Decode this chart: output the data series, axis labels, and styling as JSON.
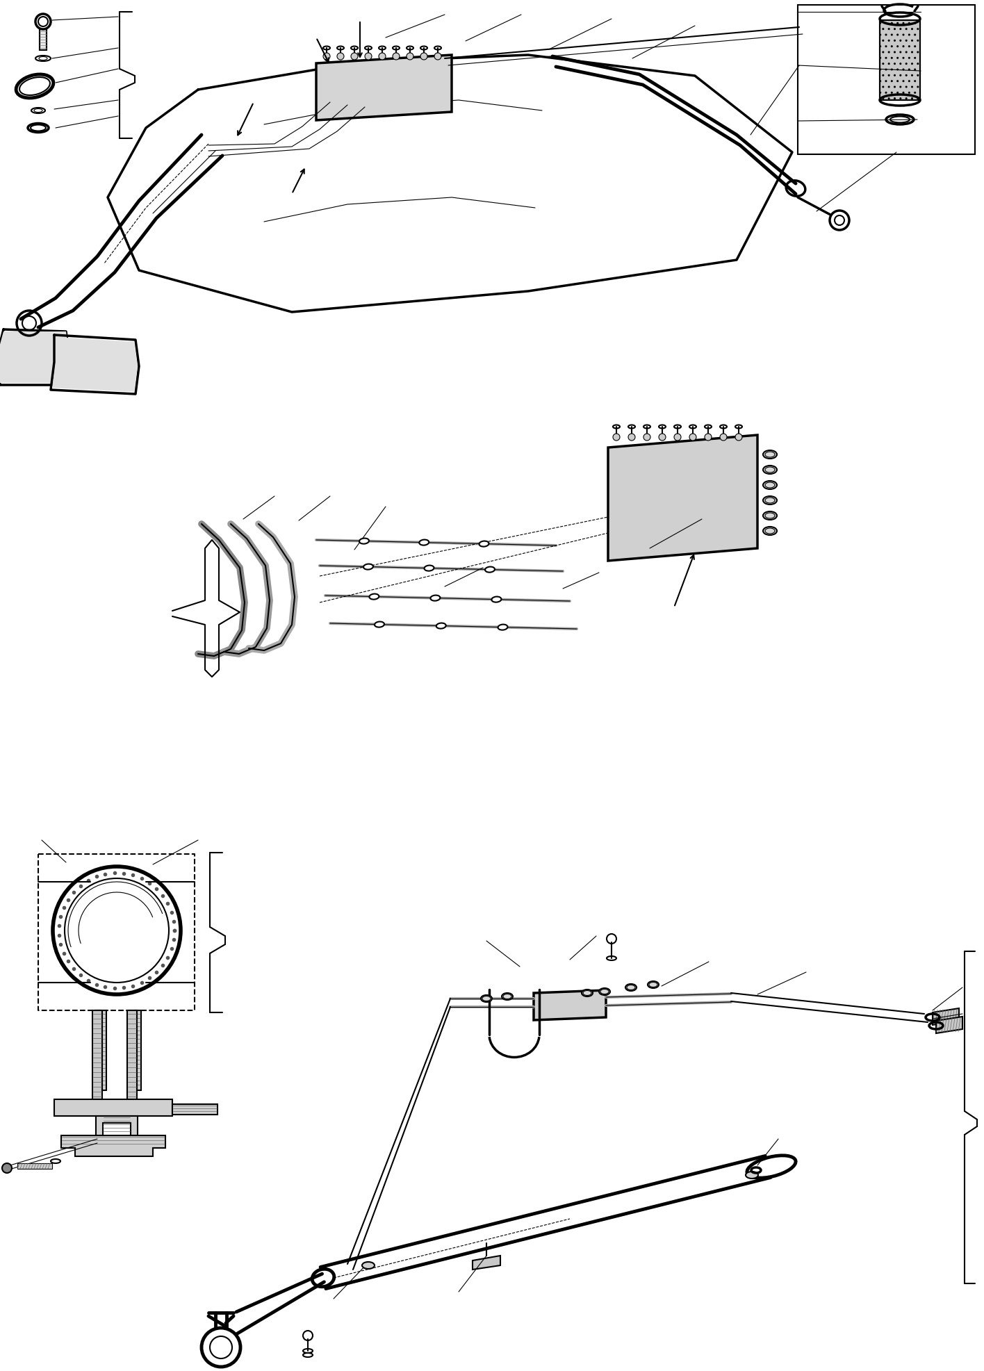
{
  "background_color": "#ffffff",
  "line_color": "#000000",
  "fig_width": 14.16,
  "fig_height": 19.74,
  "dpi": 100
}
